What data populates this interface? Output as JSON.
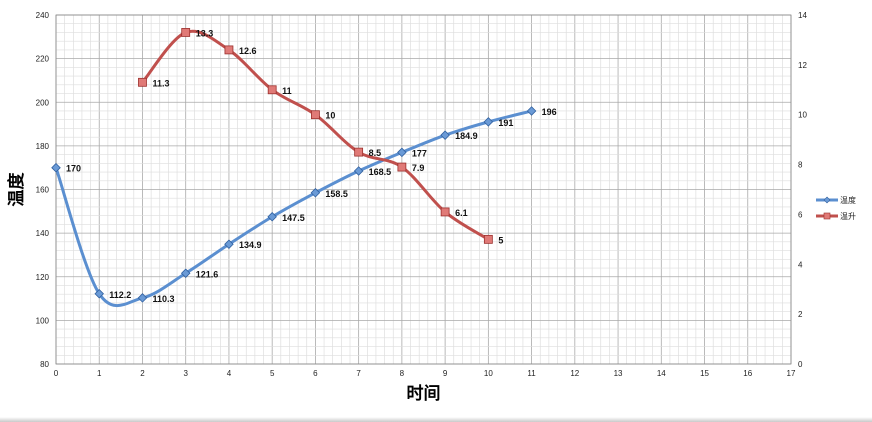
{
  "chart_data": {
    "type": "line",
    "title": "",
    "xlabel": "时间",
    "ylabel": "温度",
    "xlim": [
      0,
      17
    ],
    "ylim": [
      80,
      240
    ],
    "y2lim": [
      0,
      14
    ],
    "x_ticks": [
      0,
      1,
      2,
      3,
      4,
      5,
      6,
      7,
      8,
      9,
      10,
      11,
      12,
      13,
      14,
      15,
      16,
      17
    ],
    "y_ticks": [
      80,
      100,
      120,
      140,
      160,
      180,
      200,
      220,
      240
    ],
    "y2_ticks": [
      0,
      2,
      4,
      6,
      8,
      10,
      12,
      14
    ],
    "grid": true,
    "legend_position": "right",
    "series": [
      {
        "name": "温度",
        "axis": "left",
        "color": "#5b8fd0",
        "marker": "diamond",
        "x": [
          0,
          1,
          2,
          3,
          4,
          5,
          6,
          7,
          8,
          9,
          10,
          11
        ],
        "values": [
          170,
          112.2,
          110.3,
          121.6,
          134.9,
          147.5,
          158.5,
          168.5,
          177,
          184.9,
          191,
          196
        ],
        "labels": [
          "170",
          "112.2",
          "110.3",
          "121.6",
          "134.9",
          "147.5",
          "158.5",
          "168.5",
          "177",
          "184.9",
          "191",
          "196"
        ]
      },
      {
        "name": "温升",
        "axis": "right",
        "color": "#c0504d",
        "marker": "square",
        "x": [
          2,
          3,
          4,
          5,
          6,
          7,
          8,
          9,
          10
        ],
        "values": [
          11.3,
          13.3,
          12.6,
          11,
          10,
          8.5,
          7.9,
          6.1,
          5
        ],
        "labels": [
          "11.3",
          "13.3",
          "12.6",
          "11",
          "10",
          "8.5",
          "7.9",
          "6.1",
          "5"
        ]
      }
    ]
  }
}
